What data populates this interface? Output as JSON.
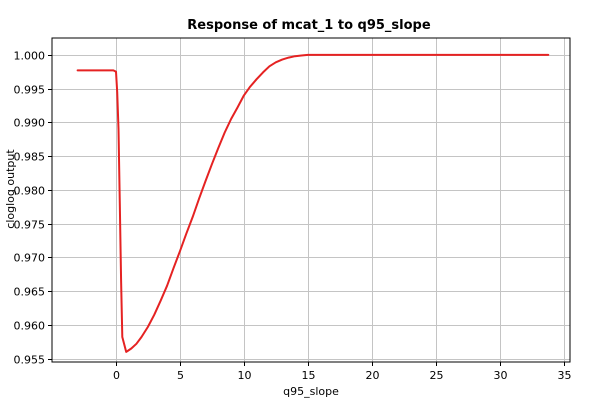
{
  "chart_data": {
    "type": "line",
    "title": "Response of mcat_1 to q95_slope",
    "xlabel": "q95_slope",
    "ylabel": "cloglog output",
    "xlim": [
      -5,
      35.5
    ],
    "ylim": [
      0.9545,
      1.0025
    ],
    "xticks": [
      0,
      5,
      10,
      15,
      20,
      25,
      30,
      35
    ],
    "yticks": [
      0.955,
      0.96,
      0.965,
      0.97,
      0.975,
      0.98,
      0.985,
      0.99,
      0.995,
      1.0
    ],
    "ytick_labels": [
      "0.955",
      "0.960",
      "0.965",
      "0.970",
      "0.975",
      "0.980",
      "0.985",
      "0.990",
      "0.995",
      "1.000"
    ],
    "grid": true,
    "line_color": "#e52222",
    "series": [
      {
        "x": [
          -3.0,
          -0.2,
          0.0,
          0.1,
          0.2,
          0.3,
          0.4,
          0.5,
          0.8,
          1.2,
          1.6,
          2.0,
          2.5,
          3.0,
          3.5,
          4.0,
          4.5,
          5.0,
          5.5,
          6.0,
          6.5,
          7.0,
          7.5,
          8.0,
          8.5,
          9.0,
          9.5,
          10.0,
          10.5,
          11.0,
          11.5,
          12.0,
          12.5,
          13.0,
          13.5,
          14.0,
          14.5,
          15.0,
          15.5,
          16.0,
          17.0,
          18.0,
          20.0,
          25.0,
          30.0,
          33.8
        ],
        "y": [
          0.9977,
          0.9977,
          0.9975,
          0.9945,
          0.989,
          0.978,
          0.9665,
          0.9582,
          0.956,
          0.9565,
          0.9572,
          0.9582,
          0.9597,
          0.9615,
          0.9636,
          0.9658,
          0.9684,
          0.9709,
          0.9735,
          0.976,
          0.9787,
          0.9813,
          0.9838,
          0.9862,
          0.9885,
          0.9905,
          0.9922,
          0.994,
          0.9953,
          0.9964,
          0.9974,
          0.9983,
          0.9989,
          0.9993,
          0.9996,
          0.9998,
          0.9999,
          1.0,
          1.0,
          1.0,
          1.0,
          1.0,
          1.0,
          1.0,
          1.0,
          1.0
        ]
      }
    ]
  }
}
